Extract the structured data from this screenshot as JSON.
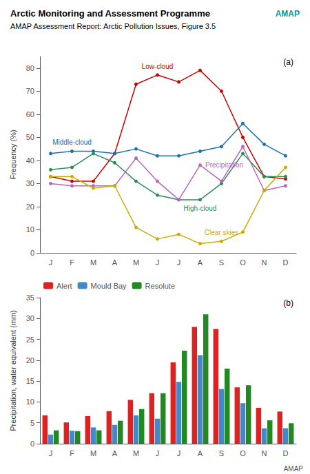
{
  "chart_data": [
    {
      "type": "line",
      "title": "Arctic Monitoring and Assessment Programme",
      "subtitle": "AMAP Assessment Report: Arctic Pollution Issues, Figure 3.5",
      "annotations": [
        "(a)",
        "AMAP"
      ],
      "categories": [
        "J",
        "F",
        "M",
        "A",
        "M",
        "J",
        "J",
        "A",
        "S",
        "O",
        "N",
        "D"
      ],
      "series": [
        {
          "name": "Low-cloud",
          "color": "#cc0000",
          "values": [
            33,
            31,
            31,
            43,
            73,
            77,
            74,
            79,
            70,
            50,
            33,
            32
          ]
        },
        {
          "name": "Middle-cloud",
          "color": "#1a6fb5",
          "values": [
            43,
            44,
            44,
            43,
            45,
            42,
            42,
            44,
            46,
            56,
            47,
            42
          ]
        },
        {
          "name": "High-cloud",
          "color": "#2e8b57",
          "values": [
            36,
            37,
            43,
            39,
            31,
            25,
            23,
            23,
            30,
            43,
            33,
            33
          ]
        },
        {
          "name": "Precipitation",
          "color": "#bb66bb",
          "values": [
            30,
            29,
            29,
            29,
            41,
            31,
            23,
            38,
            31,
            46,
            27,
            29
          ]
        },
        {
          "name": "Clear skies",
          "color": "#ccaa00",
          "values": [
            33,
            33,
            28,
            29,
            11,
            6,
            8,
            4,
            5,
            9,
            27,
            37
          ]
        }
      ],
      "ylabel": "Frequency (%)",
      "ylim": [
        0,
        85
      ],
      "yticks": [
        0,
        10,
        20,
        30,
        40,
        50,
        60,
        70,
        80
      ],
      "marker": "circle",
      "grid": false
    },
    {
      "type": "bar",
      "annotations": [
        "(b)",
        "AMAP"
      ],
      "categories": [
        "J",
        "F",
        "M",
        "A",
        "M",
        "J",
        "J",
        "A",
        "S",
        "O",
        "N",
        "D"
      ],
      "series": [
        {
          "name": "Alert",
          "color": "#dd2222",
          "values": [
            6.8,
            5.1,
            6.6,
            7.8,
            10.5,
            12.1,
            19.5,
            28.0,
            27.5,
            13.5,
            8.6,
            7.7
          ]
        },
        {
          "name": "Mould Bay",
          "color": "#4488cc",
          "values": [
            2.2,
            3.1,
            3.9,
            4.5,
            6.8,
            6.0,
            14.8,
            21.2,
            13.1,
            9.7,
            3.7,
            3.7
          ]
        },
        {
          "name": "Resolute",
          "color": "#228822",
          "values": [
            3.2,
            3.0,
            3.2,
            5.5,
            8.3,
            12.1,
            22.3,
            31.0,
            18.0,
            14.0,
            5.6,
            4.9
          ]
        }
      ],
      "ylabel": "Precipitation, water equivalent (mm)",
      "ylim": [
        0,
        35
      ],
      "yticks": [
        0,
        5,
        10,
        15,
        20,
        25,
        30,
        35
      ],
      "legend": "upper left",
      "grid": false
    }
  ]
}
